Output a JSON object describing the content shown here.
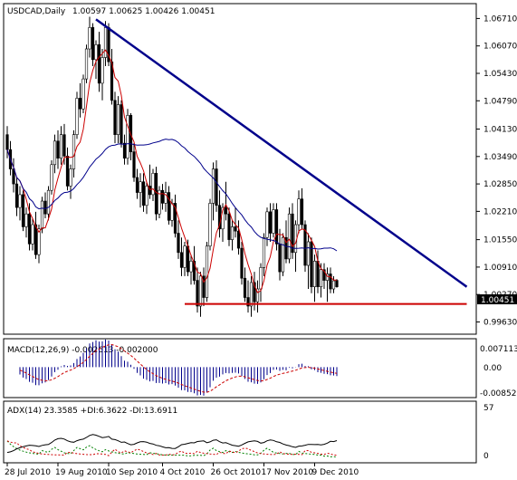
{
  "header": {
    "symbol_timeframe": "USDCAD,Daily",
    "ohlc": "1.00597 1.00625 1.00426 1.00451"
  },
  "price_axis": {
    "ticks": [
      "1.06710",
      "1.06070",
      "1.05430",
      "1.04790",
      "1.04130",
      "1.03490",
      "1.02850",
      "1.02210",
      "1.01550",
      "1.00910",
      "1.00270",
      "0.99630"
    ],
    "current_price_label": "1.00451"
  },
  "time_axis": {
    "ticks": [
      "28 Jul 2010",
      "19 Aug 2010",
      "10 Sep 2010",
      "4 Oct 2010",
      "26 Oct 2010",
      "17 Nov 2010",
      "9 Dec 2010"
    ]
  },
  "macd": {
    "label": "MACD(12,26,9) -0.002613 -0.002000",
    "ticks": [
      "0.007113",
      "0.00",
      "-0.00852"
    ]
  },
  "adx": {
    "label": "ADX(14) 23.3585 +DI:6.3622 -DI:13.6911",
    "ticks": [
      "57",
      "0"
    ]
  },
  "colors": {
    "up_candle": "#ffffff",
    "down_candle": "#000000",
    "trendline": "#00008b",
    "support": "#cc0000",
    "ma_fast": "#cc0000",
    "ma_slow": "#00008b",
    "macd_hist": "#00008b",
    "macd_signal": "#cc0000",
    "plus_di": "#008000",
    "minus_di": "#cc0000",
    "adx_line": "#000000"
  },
  "chart_data": {
    "type": "candlestick",
    "instrument": "USDCAD",
    "timeframe": "Daily",
    "price_range": [
      0.9945,
      1.0693
    ],
    "candles": [
      [
        1.04,
        1.042,
        1.0345,
        1.0365
      ],
      [
        1.0365,
        1.0385,
        1.0305,
        1.032
      ],
      [
        1.032,
        1.0345,
        1.0265,
        1.0285
      ],
      [
        1.0285,
        1.03,
        1.021,
        1.023
      ],
      [
        1.023,
        1.028,
        1.02,
        1.026
      ],
      [
        1.026,
        1.027,
        1.0175,
        1.0185
      ],
      [
        1.0185,
        1.023,
        1.016,
        1.0215
      ],
      [
        1.0215,
        1.024,
        1.013,
        1.0145
      ],
      [
        1.0145,
        1.0205,
        1.013,
        1.019
      ],
      [
        1.019,
        1.022,
        1.011,
        1.012
      ],
      [
        1.012,
        1.019,
        1.01,
        1.018
      ],
      [
        1.018,
        1.0255,
        1.017,
        1.0245
      ],
      [
        1.0245,
        1.0265,
        1.0205,
        1.0215
      ],
      [
        1.0215,
        1.028,
        1.02,
        1.027
      ],
      [
        1.027,
        1.034,
        1.026,
        1.033
      ],
      [
        1.033,
        1.04,
        1.031,
        1.0385
      ],
      [
        1.0385,
        1.041,
        1.032,
        1.0345
      ],
      [
        1.0345,
        1.042,
        1.033,
        1.04
      ],
      [
        1.04,
        1.0425,
        1.033,
        1.035
      ],
      [
        1.035,
        1.037,
        1.027,
        1.028
      ],
      [
        1.028,
        1.033,
        1.025,
        1.032
      ],
      [
        1.032,
        1.041,
        1.03,
        1.04
      ],
      [
        1.04,
        1.05,
        1.039,
        1.0485
      ],
      [
        1.0485,
        1.052,
        1.044,
        1.046
      ],
      [
        1.046,
        1.054,
        1.045,
        1.053
      ],
      [
        1.053,
        1.061,
        1.052,
        1.06
      ],
      [
        1.06,
        1.0675,
        1.058,
        1.065
      ],
      [
        1.065,
        1.066,
        1.056,
        1.0575
      ],
      [
        1.0575,
        1.062,
        1.053,
        1.061
      ],
      [
        1.061,
        1.064,
        1.05,
        1.052
      ],
      [
        1.052,
        1.06,
        1.048,
        1.058
      ],
      [
        1.058,
        1.0665,
        1.056,
        1.065
      ],
      [
        1.065,
        1.066,
        1.056,
        1.057
      ],
      [
        1.057,
        1.06,
        1.047,
        1.048
      ],
      [
        1.048,
        1.05,
        1.038,
        1.04
      ],
      [
        1.04,
        1.049,
        1.038,
        1.047
      ],
      [
        1.047,
        1.048,
        1.037,
        1.038
      ],
      [
        1.038,
        1.04,
        1.033,
        1.0345
      ],
      [
        1.0345,
        1.046,
        1.033,
        1.0445
      ],
      [
        1.0445,
        1.045,
        1.034,
        1.036
      ],
      [
        1.036,
        1.038,
        1.029,
        1.03
      ],
      [
        1.03,
        1.032,
        1.025,
        1.0265
      ],
      [
        1.0265,
        1.031,
        1.023,
        1.029
      ],
      [
        1.029,
        1.031,
        1.022,
        1.0235
      ],
      [
        1.0235,
        1.029,
        1.0215,
        1.028
      ],
      [
        1.028,
        1.033,
        1.025,
        1.026
      ],
      [
        1.026,
        1.032,
        1.0245,
        1.031
      ],
      [
        1.031,
        1.0325,
        1.02,
        1.0215
      ],
      [
        1.0215,
        1.028,
        1.0205,
        1.027
      ],
      [
        1.027,
        1.0285,
        1.0225,
        1.024
      ],
      [
        1.024,
        1.029,
        1.022,
        1.0265
      ],
      [
        1.0265,
        1.028,
        1.019,
        1.02
      ],
      [
        1.02,
        1.025,
        1.0185,
        1.024
      ],
      [
        1.024,
        1.026,
        1.016,
        1.017
      ],
      [
        1.017,
        1.02,
        1.011,
        1.0125
      ],
      [
        1.0125,
        1.016,
        1.007,
        1.009
      ],
      [
        1.009,
        1.015,
        1.007,
        1.014
      ],
      [
        1.014,
        1.0155,
        1.007,
        1.008
      ],
      [
        1.008,
        1.012,
        1.005,
        1.0105
      ],
      [
        1.0105,
        1.014,
        1.005,
        1.006
      ],
      [
        1.006,
        1.009,
        0.9985,
        1.0
      ],
      [
        1.0,
        1.008,
        0.9975,
        1.007
      ],
      [
        1.007,
        1.009,
        1.0,
        1.002
      ],
      [
        1.002,
        1.015,
        1.001,
        1.014
      ],
      [
        1.014,
        1.025,
        1.013,
        1.024
      ],
      [
        1.024,
        1.0335,
        1.02,
        1.032
      ],
      [
        1.032,
        1.034,
        1.022,
        1.0235
      ],
      [
        1.0235,
        1.027,
        1.016,
        1.018
      ],
      [
        1.018,
        1.024,
        1.015,
        1.023
      ],
      [
        1.023,
        1.029,
        1.02,
        1.0215
      ],
      [
        1.0215,
        1.023,
        1.014,
        1.0155
      ],
      [
        1.0155,
        1.02,
        1.013,
        1.0185
      ],
      [
        1.0185,
        1.023,
        1.016,
        1.0175
      ],
      [
        1.0175,
        1.02,
        1.012,
        1.0135
      ],
      [
        1.0135,
        1.015,
        1.005,
        1.0065
      ],
      [
        1.0065,
        1.009,
        1.001,
        1.002
      ],
      [
        1.002,
        1.006,
        0.9985,
        1.0
      ],
      [
        1.0,
        1.007,
        0.9975,
        1.0055
      ],
      [
        1.0055,
        1.008,
        0.999,
        1.001
      ],
      [
        1.001,
        1.006,
        0.9985,
        1.004
      ],
      [
        1.004,
        1.01,
        1.001,
        1.009
      ],
      [
        1.009,
        1.017,
        1.007,
        1.016
      ],
      [
        1.016,
        1.023,
        1.014,
        1.022
      ],
      [
        1.022,
        1.024,
        1.015,
        1.017
      ],
      [
        1.017,
        1.024,
        1.016,
        1.0225
      ],
      [
        1.0225,
        1.024,
        1.013,
        1.0145
      ],
      [
        1.0145,
        1.018,
        1.006,
        1.008
      ],
      [
        1.008,
        1.017,
        1.007,
        1.016
      ],
      [
        1.016,
        1.02,
        1.01,
        1.011
      ],
      [
        1.011,
        1.023,
        1.01,
        1.0215
      ],
      [
        1.0215,
        1.024,
        1.011,
        1.0125
      ],
      [
        1.0125,
        1.02,
        1.008,
        1.019
      ],
      [
        1.019,
        1.027,
        1.017,
        1.025
      ],
      [
        1.025,
        1.0275,
        1.018,
        1.019
      ],
      [
        1.019,
        1.02,
        1.008,
        1.0095
      ],
      [
        1.0095,
        1.017,
        1.004,
        1.015
      ],
      [
        1.015,
        1.016,
        1.003,
        1.0045
      ],
      [
        1.0045,
        1.012,
        1.001,
        1.0105
      ],
      [
        1.0105,
        1.013,
        1.003,
        1.0045
      ],
      [
        1.0045,
        1.01,
        1.002,
        1.0085
      ],
      [
        1.0085,
        1.01,
        1.004,
        1.006
      ],
      [
        1.006,
        1.009,
        1.001,
        1.0075
      ],
      [
        1.0075,
        1.009,
        1.003,
        1.004
      ],
      [
        1.004,
        1.007,
        1.003,
        1.0059
      ],
      [
        1.006,
        1.0063,
        1.0043,
        1.0045
      ]
    ],
    "trendline": {
      "from": {
        "x_index": 28,
        "y": 1.0669
      },
      "to": {
        "x_index": 145,
        "y": 1.0045
      }
    },
    "support_line": {
      "from": {
        "x_index": 56,
        "y": 1.0005
      },
      "to": {
        "x_index": 145,
        "y": 1.0005
      }
    },
    "current_price": 1.00451,
    "macd_range": [
      -0.00852,
      0.007113
    ],
    "adx_range": [
      0,
      57
    ]
  }
}
